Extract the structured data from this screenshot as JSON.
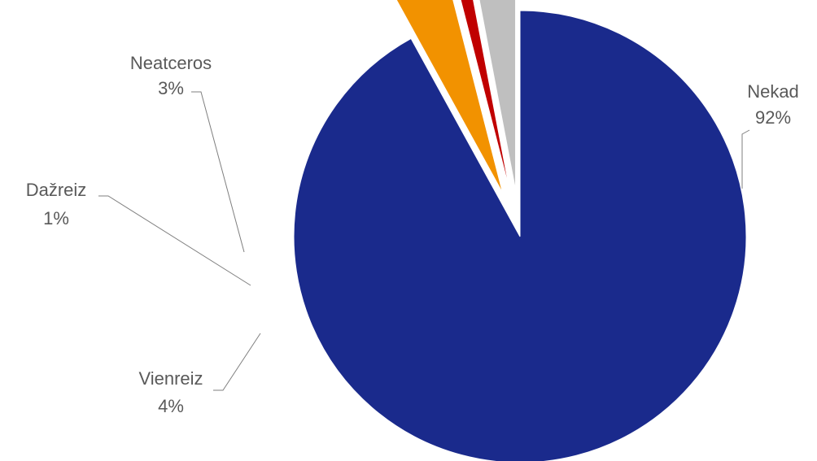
{
  "chart_data": {
    "type": "pie",
    "categories": [
      "Nekad",
      "Vienreiz",
      "Dažreiz",
      "Neatceros"
    ],
    "values": [
      92,
      4,
      1,
      3
    ],
    "labels": [
      "92%",
      "4%",
      "1%",
      "3%"
    ],
    "colors": [
      "#1a2a8c",
      "#f29200",
      "#c00000",
      "#bfbfbf"
    ],
    "exploded": [
      false,
      true,
      true,
      true
    ],
    "legend": "none",
    "data_labels": "category name and percentage, with leader lines"
  }
}
